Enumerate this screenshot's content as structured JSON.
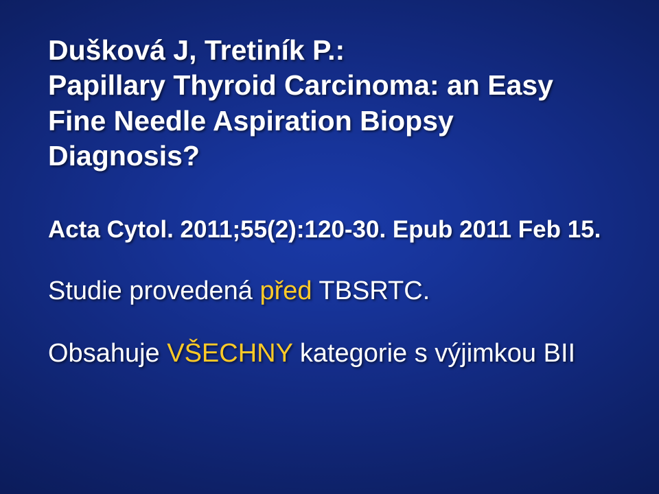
{
  "background": {
    "gradient_center": "#1a3aa8",
    "gradient_edge": "#040a28"
  },
  "text_color": "#ffffff",
  "highlight_color": "#ffca28",
  "heading": {
    "line1": "Dušková J, Tretiník P.:",
    "line2": "Papillary Thyroid Carcinoma: an Easy Fine Needle Aspiration Biopsy Diagnosis?",
    "fontsize": 41,
    "fontweight": "bold"
  },
  "citation": {
    "text": "Acta Cytol. 2011;55(2):120-30. Epub 2011 Feb 15.",
    "fontsize": 35,
    "fontweight": "bold"
  },
  "body1": {
    "prefix": "Studie provedená  ",
    "highlight": "před",
    "suffix": " TBSRTC.",
    "fontsize": 38
  },
  "body2": {
    "prefix": "Obsahuje ",
    "highlight": "VŠECHNY",
    "suffix": " kategorie s výjimkou BII",
    "fontsize": 38
  }
}
